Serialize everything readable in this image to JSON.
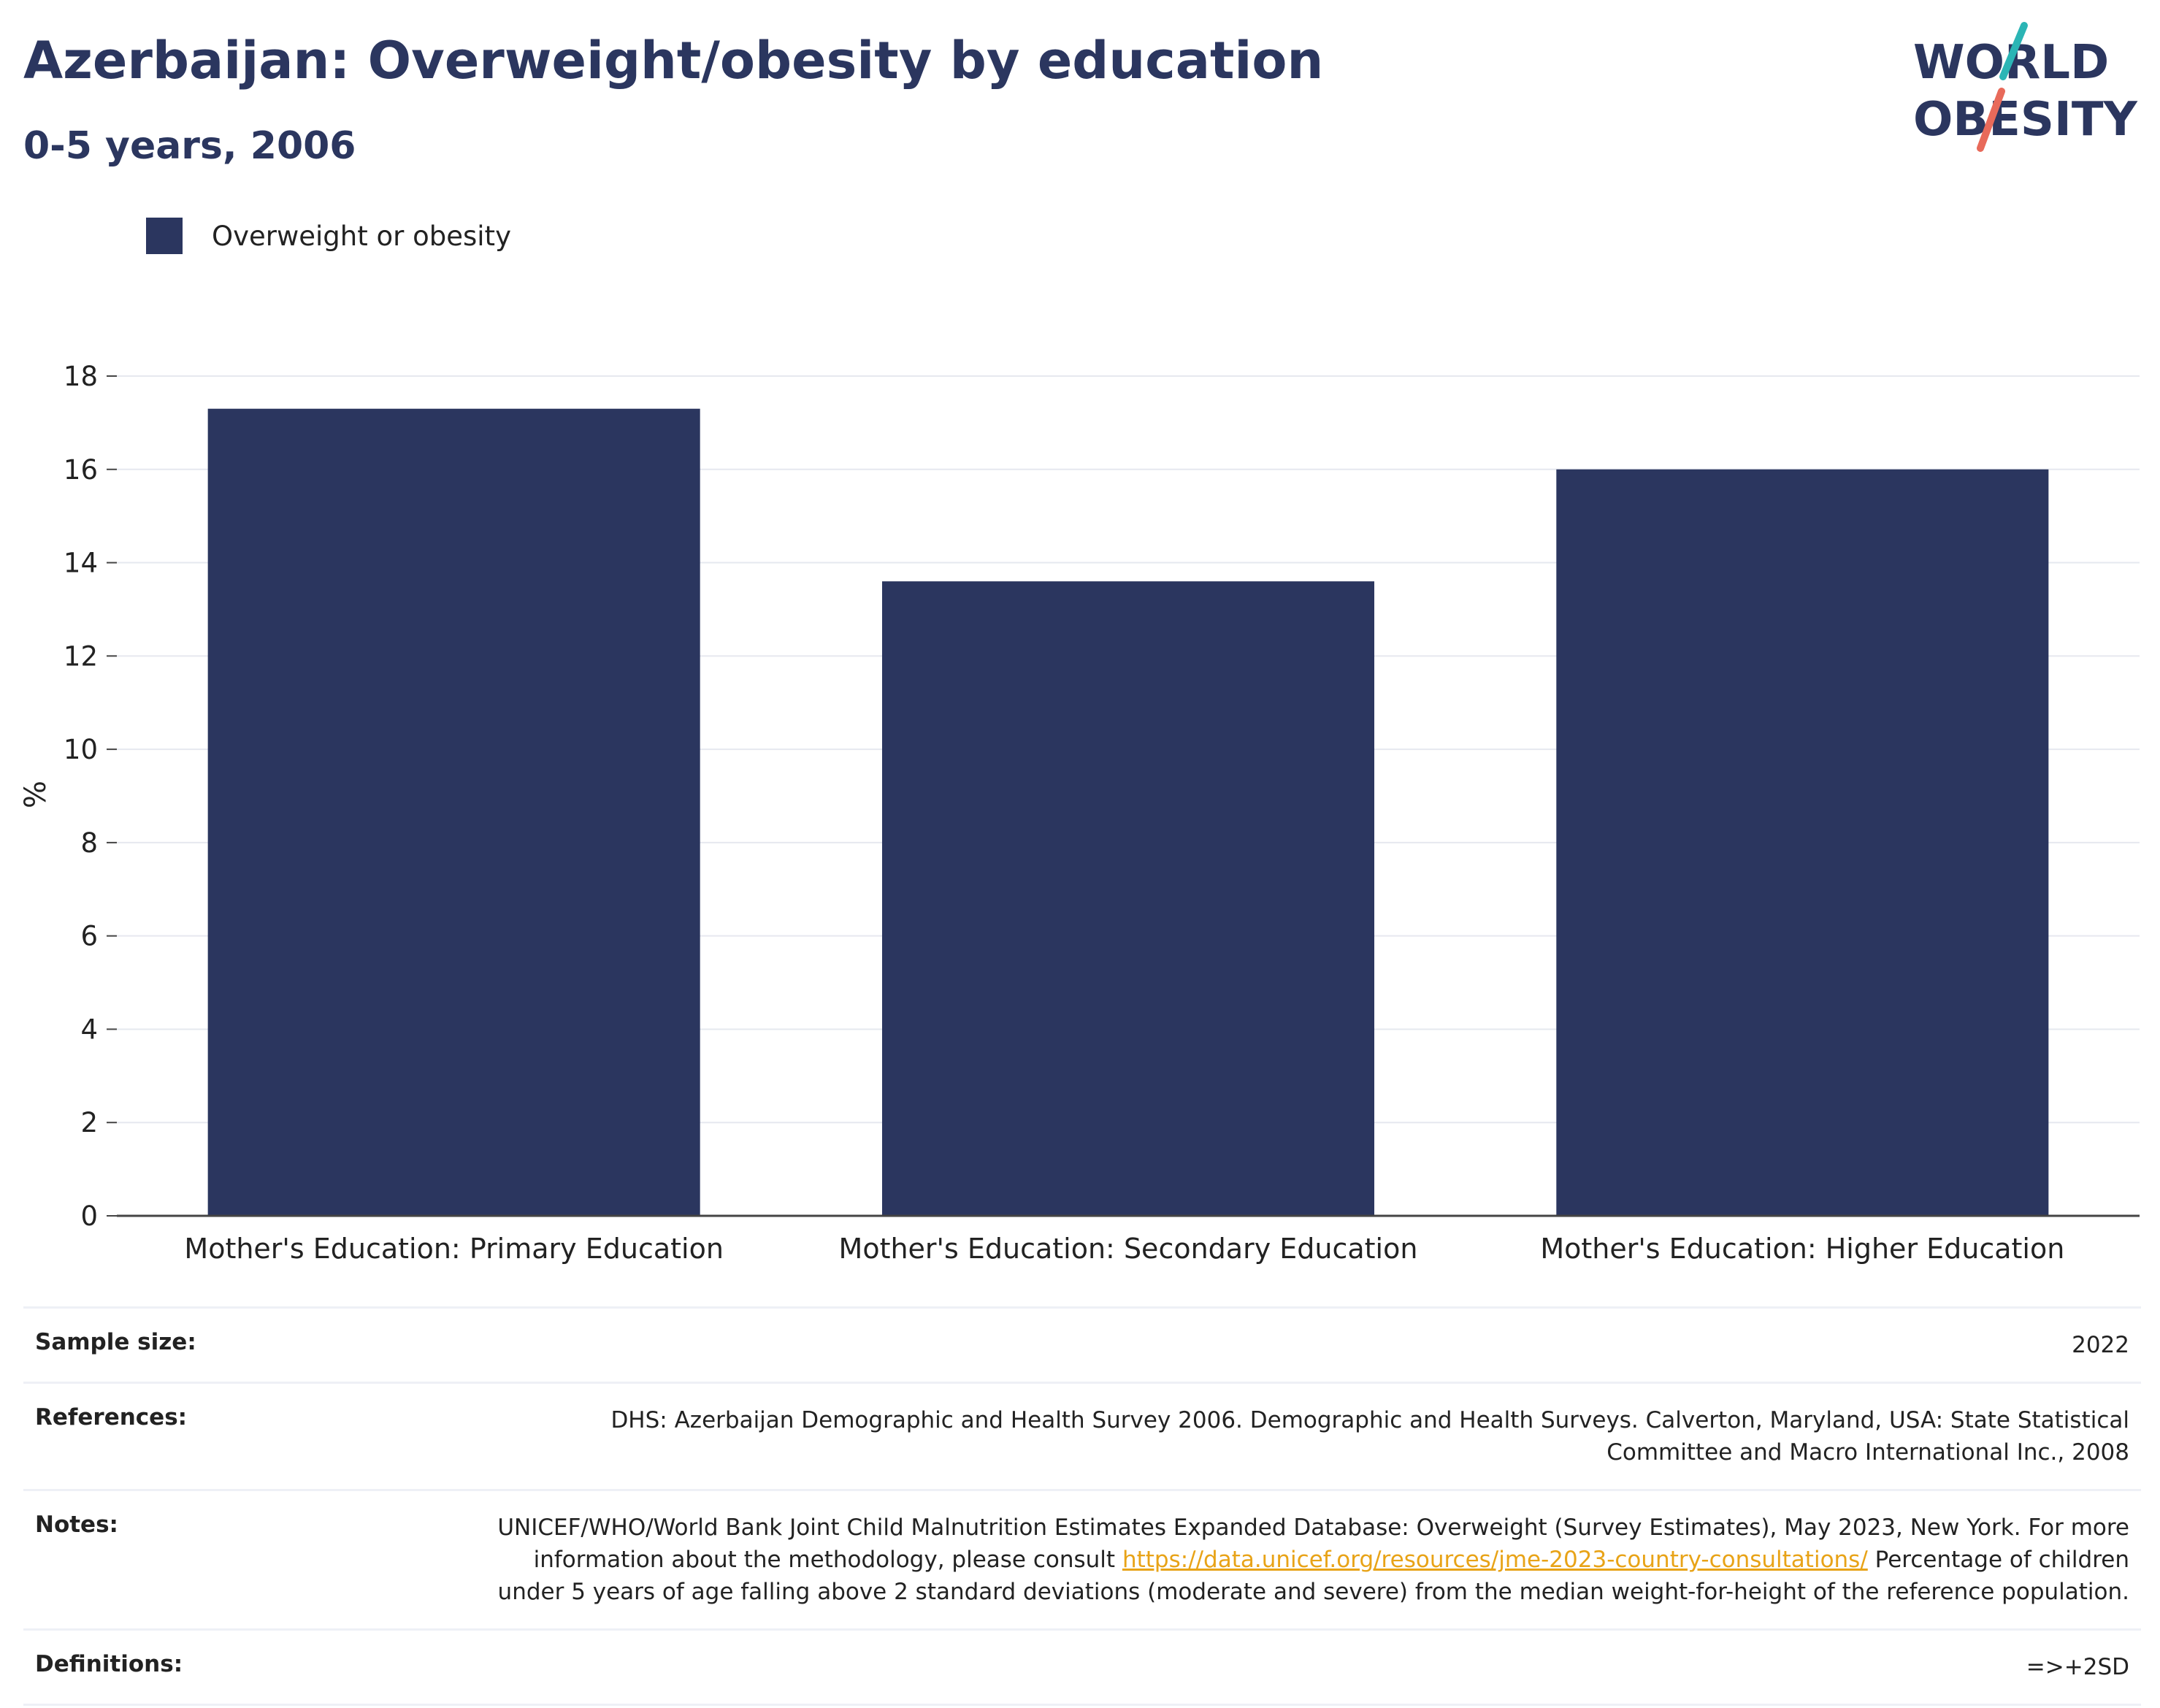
{
  "title": "Azerbaijan: Overweight/obesity by education",
  "subtitle": "0-5 years, 2006",
  "logo": {
    "line1": "WORLD",
    "line2": "OBESITY",
    "colors": {
      "text": "#2b365f",
      "slash_top": "#2bb5b5",
      "slash_bottom": "#e86a5a"
    }
  },
  "legend": {
    "label": "Overweight or obesity",
    "color": "#2b365f"
  },
  "chart_data": {
    "type": "bar",
    "categories": [
      "Mother's Education: Primary Education",
      "Mother's Education: Secondary Education",
      "Mother's Education: Higher Education"
    ],
    "series": [
      {
        "name": "Overweight or obesity",
        "values": [
          17.3,
          13.6,
          16.0
        ],
        "color": "#2b365f"
      }
    ],
    "title": "Azerbaijan: Overweight/obesity by education",
    "subtitle": "0-5 years, 2006",
    "xlabel": "",
    "ylabel": "%",
    "ylim": [
      0,
      18
    ],
    "yticks": [
      0,
      2,
      4,
      6,
      8,
      10,
      12,
      14,
      16,
      18
    ],
    "grid": true,
    "legend_position": "top-left"
  },
  "footer": {
    "sample_size": {
      "label": "Sample size:",
      "value": "2022"
    },
    "references": {
      "label": "References:",
      "value": "DHS: Azerbaijan Demographic and Health Survey 2006. Demographic and Health Surveys. Calverton, Maryland, USA: State Statistical Committee and Macro International Inc., 2008"
    },
    "notes": {
      "label": "Notes:",
      "text_before": "UNICEF/WHO/World Bank Joint Child Malnutrition Estimates Expanded Database: Overweight (Survey Estimates), May 2023, New York. For more information about the methodology, please consult ",
      "link": "https://data.unicef.org/resources/jme-2023-country-consultations/",
      "text_after": " Percentage of children under 5 years of age falling above 2 standard deviations (moderate and severe) from the median weight-for-height of the reference population."
    },
    "definitions": {
      "label": "Definitions:",
      "value": "=>+2SD"
    }
  }
}
